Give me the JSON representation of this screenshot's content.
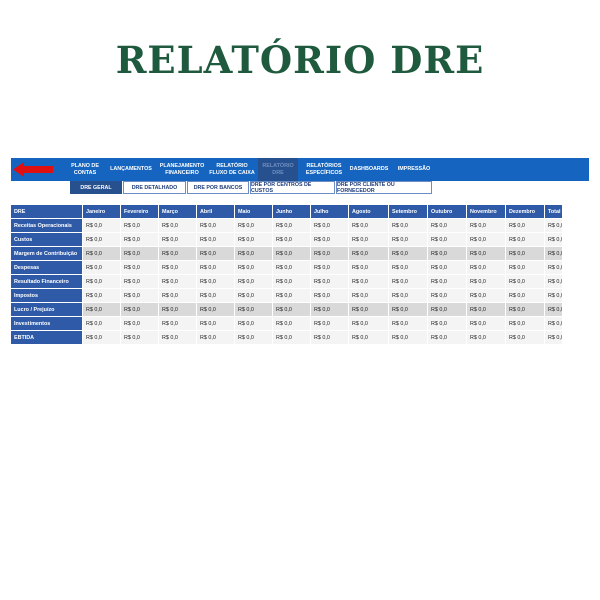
{
  "title": "RELATÓRIO DRE",
  "nav": {
    "back_icon": "red-arrow-left-icon",
    "items": [
      {
        "label": "PLANO DE\nCONTAS",
        "active": false
      },
      {
        "label": "LANÇAMENTOS",
        "active": false
      },
      {
        "label": "PLANEJAMENTO\nFINANCEIRO",
        "active": false
      },
      {
        "label": "RELATÓRIO\nFLUXO DE CAIXA",
        "active": false
      },
      {
        "label": "RELATÓRIO\nDRE",
        "active": true
      },
      {
        "label": "RELATÓRIOS\nESPECÍFICOS",
        "active": false
      },
      {
        "label": "DASHBOARDS",
        "active": false
      },
      {
        "label": "IMPRESSÃO",
        "active": false
      }
    ]
  },
  "tabs": [
    {
      "label": "DRE GERAL",
      "active": true
    },
    {
      "label": "DRE DETALHADO",
      "active": false
    },
    {
      "label": "DRE POR BANCOS",
      "active": false
    },
    {
      "label": "DRE POR CENTROS DE CUSTOS",
      "active": false
    },
    {
      "label": "DRE POR CLIENTE OU FORNECEDOR",
      "active": false
    }
  ],
  "table": {
    "headers": [
      "DRE",
      "Janeiro",
      "Fevereiro",
      "Março",
      "Abril",
      "Maio",
      "Junho",
      "Julho",
      "Agosto",
      "Setembro",
      "Outubro",
      "Novembro",
      "Dezembro",
      "Total"
    ],
    "rows": [
      {
        "label": "Receitas Operacionais",
        "values": [
          "R$ 0,0",
          "R$ 0,0",
          "R$ 0,0",
          "R$ 0,0",
          "R$ 0,0",
          "R$ 0,0",
          "R$ 0,0",
          "R$ 0,0",
          "R$ 0,0",
          "R$ 0,0",
          "R$ 0,0",
          "R$ 0,0",
          "R$ 0,0"
        ]
      },
      {
        "label": "Custos",
        "values": [
          "R$ 0,0",
          "R$ 0,0",
          "R$ 0,0",
          "R$ 0,0",
          "R$ 0,0",
          "R$ 0,0",
          "R$ 0,0",
          "R$ 0,0",
          "R$ 0,0",
          "R$ 0,0",
          "R$ 0,0",
          "R$ 0,0",
          "R$ 0,0"
        ]
      },
      {
        "label": "Margem de Contribuição",
        "values": [
          "R$ 0,0",
          "R$ 0,0",
          "R$ 0,0",
          "R$ 0,0",
          "R$ 0,0",
          "R$ 0,0",
          "R$ 0,0",
          "R$ 0,0",
          "R$ 0,0",
          "R$ 0,0",
          "R$ 0,0",
          "R$ 0,0",
          "R$ 0,0"
        ]
      },
      {
        "label": "Despesas",
        "values": [
          "R$ 0,0",
          "R$ 0,0",
          "R$ 0,0",
          "R$ 0,0",
          "R$ 0,0",
          "R$ 0,0",
          "R$ 0,0",
          "R$ 0,0",
          "R$ 0,0",
          "R$ 0,0",
          "R$ 0,0",
          "R$ 0,0",
          "R$ 0,0"
        ]
      },
      {
        "label": "Resultado Financeiro",
        "values": [
          "R$ 0,0",
          "R$ 0,0",
          "R$ 0,0",
          "R$ 0,0",
          "R$ 0,0",
          "R$ 0,0",
          "R$ 0,0",
          "R$ 0,0",
          "R$ 0,0",
          "R$ 0,0",
          "R$ 0,0",
          "R$ 0,0",
          "R$ 0,0"
        ]
      },
      {
        "label": "Impostos",
        "values": [
          "R$ 0,0",
          "R$ 0,0",
          "R$ 0,0",
          "R$ 0,0",
          "R$ 0,0",
          "R$ 0,0",
          "R$ 0,0",
          "R$ 0,0",
          "R$ 0,0",
          "R$ 0,0",
          "R$ 0,0",
          "R$ 0,0",
          "R$ 0,0"
        ]
      },
      {
        "label": "Lucro / Prejuízo",
        "values": [
          "R$ 0,0",
          "R$ 0,0",
          "R$ 0,0",
          "R$ 0,0",
          "R$ 0,0",
          "R$ 0,0",
          "R$ 0,0",
          "R$ 0,0",
          "R$ 0,0",
          "R$ 0,0",
          "R$ 0,0",
          "R$ 0,0",
          "R$ 0,0"
        ]
      },
      {
        "label": "Investimentos",
        "values": [
          "R$ 0,0",
          "R$ 0,0",
          "R$ 0,0",
          "R$ 0,0",
          "R$ 0,0",
          "R$ 0,0",
          "R$ 0,0",
          "R$ 0,0",
          "R$ 0,0",
          "R$ 0,0",
          "R$ 0,0",
          "R$ 0,0",
          "R$ 0,0"
        ]
      },
      {
        "label": "EBTIDA",
        "values": [
          "R$ 0,0",
          "R$ 0,0",
          "R$ 0,0",
          "R$ 0,0",
          "R$ 0,0",
          "R$ 0,0",
          "R$ 0,0",
          "R$ 0,0",
          "R$ 0,0",
          "R$ 0,0",
          "R$ 0,0",
          "R$ 0,0",
          "R$ 0,0"
        ]
      }
    ]
  }
}
